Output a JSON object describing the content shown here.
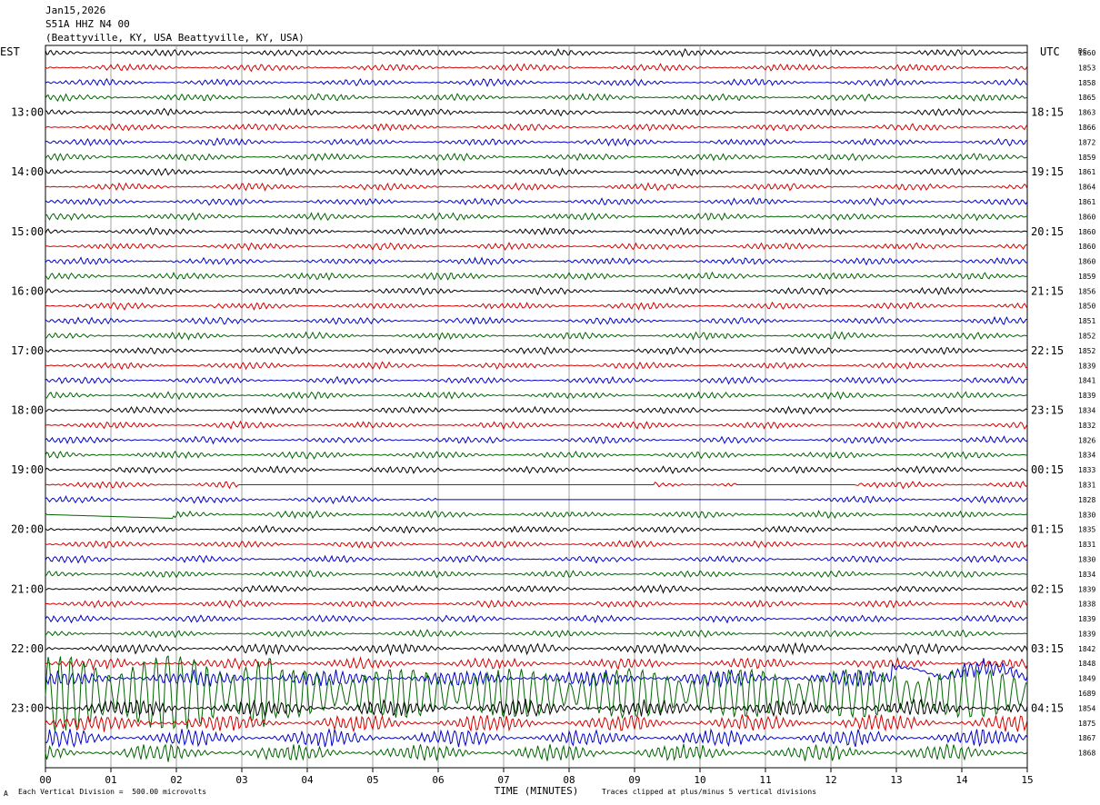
{
  "header": {
    "date": "Jan15,2026",
    "station": "S51A HHZ N4 00",
    "location": "(Beattyville, KY, USA Beattyville, KY, USA)"
  },
  "axis": {
    "left_zone": "EST",
    "right_zone": "UTC",
    "count_header": "DC"
  },
  "footer": {
    "scale_note": "Each Vertical Division =  500.00 microvolts",
    "clip_note": "Traces clipped at plus/minus 5 vertical divisions",
    "corner_mark": "A"
  },
  "chart_data": {
    "type": "line",
    "title": "",
    "xlabel": "TIME (MINUTES)",
    "x_ticks": [
      "00",
      "01",
      "02",
      "03",
      "04",
      "05",
      "06",
      "07",
      "08",
      "09",
      "10",
      "11",
      "12",
      "13",
      "14",
      "15"
    ],
    "xlim": [
      0,
      15
    ],
    "grid": true,
    "trace_colors": [
      "#000000",
      "#d40000",
      "#0000c8",
      "#006400"
    ],
    "left_time_labels": [
      "13:00",
      "14:00",
      "15:00",
      "16:00",
      "17:00",
      "18:00",
      "19:00",
      "20:00",
      "21:00",
      "22:00",
      "23:00"
    ],
    "right_time_labels": [
      "18:15",
      "19:15",
      "20:15",
      "21:15",
      "22:15",
      "23:15",
      "00:15",
      "01:15",
      "02:15",
      "03:15",
      "04:15"
    ],
    "rows_per_hour": 4,
    "first_labeled_row": 4,
    "trace_dc_values": [
      1860,
      1853,
      1858,
      1865,
      1863,
      1866,
      1872,
      1859,
      1861,
      1864,
      1861,
      1860,
      1860,
      1860,
      1860,
      1859,
      1856,
      1850,
      1851,
      1852,
      1852,
      1839,
      1841,
      1839,
      1834,
      1832,
      1826,
      1834,
      1833,
      1831,
      1828,
      1830,
      1835,
      1831,
      1830,
      1834,
      1839,
      1838,
      1839,
      1839,
      1842,
      1848,
      1849,
      1689,
      1854,
      1875,
      1867,
      1868
    ]
  }
}
